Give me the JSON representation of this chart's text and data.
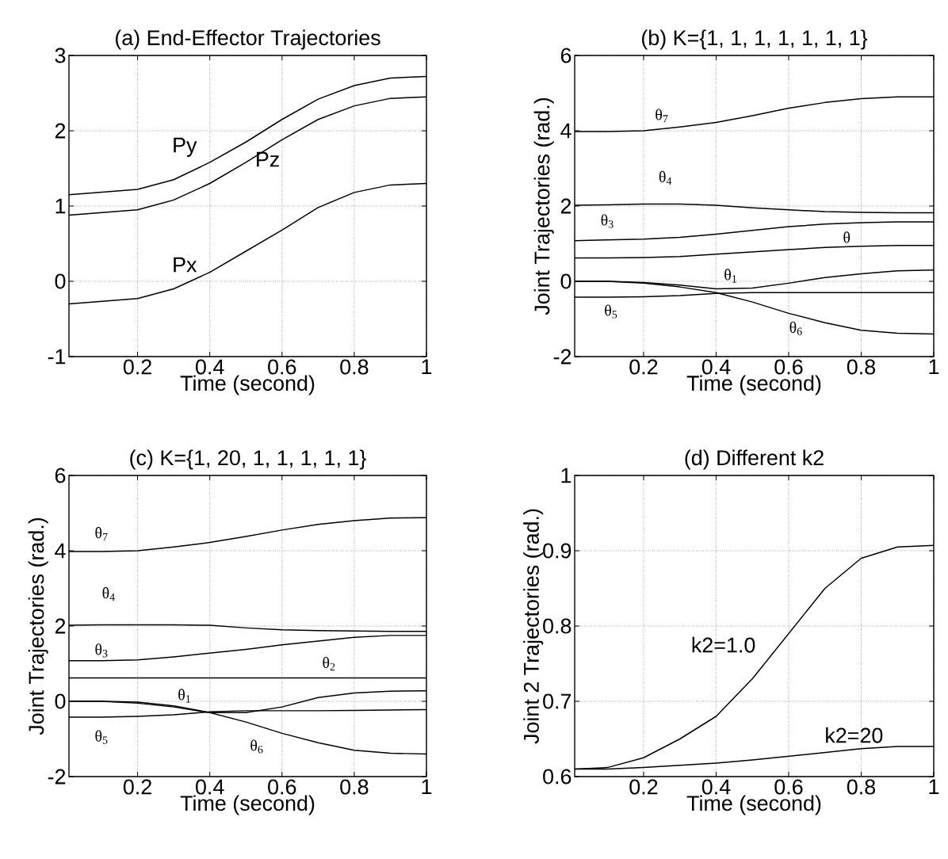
{
  "chart_data": [
    {
      "type": "line",
      "title": "(a) End-Effector Trajectories",
      "xlabel": "Time (second)",
      "xlim": [
        0.01,
        1
      ],
      "ylim": [
        -1,
        3
      ],
      "xticks": [
        0.2,
        0.4,
        0.6,
        0.8,
        1
      ],
      "yticks": [
        -1,
        0,
        1,
        2,
        3
      ],
      "grid": true,
      "x": [
        0.01,
        0.2,
        0.3,
        0.4,
        0.5,
        0.6,
        0.7,
        0.8,
        0.9,
        1
      ],
      "series": [
        {
          "name": "Py",
          "color": "#000000",
          "values": [
            1.15,
            1.22,
            1.35,
            1.58,
            1.85,
            2.15,
            2.42,
            2.6,
            2.7,
            2.72
          ]
        },
        {
          "name": "Pz",
          "color": "#000000",
          "values": [
            0.88,
            0.95,
            1.08,
            1.3,
            1.58,
            1.88,
            2.15,
            2.33,
            2.43,
            2.45
          ]
        },
        {
          "name": "Px",
          "color": "#000000",
          "values": [
            -0.3,
            -0.23,
            -0.1,
            0.12,
            0.4,
            0.68,
            0.98,
            1.18,
            1.28,
            1.3
          ]
        }
      ]
    },
    {
      "type": "line",
      "title": "(b) K={1, 1, 1, 1, 1, 1, 1}",
      "xlabel": "Time (second)",
      "ylabel": "Joint Trajectories (rad.)",
      "xlim": [
        0.01,
        1
      ],
      "ylim": [
        -2,
        6
      ],
      "xticks": [
        0.2,
        0.4,
        0.6,
        0.8,
        1
      ],
      "yticks": [
        -2,
        0,
        2,
        4,
        6
      ],
      "grid": true,
      "x": [
        0.01,
        0.1,
        0.2,
        0.3,
        0.4,
        0.5,
        0.6,
        0.7,
        0.8,
        0.9,
        1
      ],
      "series": [
        {
          "name": "θ$_{7}$",
          "color": "#000000",
          "values": [
            3.98,
            3.98,
            4.0,
            4.1,
            4.22,
            4.4,
            4.6,
            4.75,
            4.85,
            4.9,
            4.9
          ]
        },
        {
          "name": "θ$_{4}$",
          "color": "#000000",
          "values": [
            2.02,
            2.03,
            2.05,
            2.05,
            2.02,
            1.95,
            1.9,
            1.85,
            1.83,
            1.82,
            1.82
          ]
        },
        {
          "name": "θ$_{3}$",
          "color": "#000000",
          "values": [
            1.08,
            1.1,
            1.12,
            1.17,
            1.25,
            1.35,
            1.45,
            1.52,
            1.56,
            1.58,
            1.58
          ]
        },
        {
          "name": "θ",
          "color": "#000000",
          "values": [
            0.62,
            0.62,
            0.63,
            0.66,
            0.72,
            0.78,
            0.84,
            0.9,
            0.93,
            0.95,
            0.95
          ]
        },
        {
          "name": "θ$_{1}$",
          "color": "#000000",
          "values": [
            0,
            0,
            -0.03,
            -0.1,
            -0.2,
            -0.18,
            -0.05,
            0.1,
            0.2,
            0.28,
            0.3
          ]
        },
        {
          "name": "θ$_{5}$",
          "color": "#000000",
          "values": [
            -0.42,
            -0.42,
            -0.41,
            -0.38,
            -0.32,
            -0.3,
            -0.3,
            -0.3,
            -0.3,
            -0.3,
            -0.3
          ]
        },
        {
          "name": "θ$_{6}$",
          "color": "#000000",
          "values": [
            0,
            0,
            -0.05,
            -0.15,
            -0.3,
            -0.55,
            -0.85,
            -1.1,
            -1.3,
            -1.38,
            -1.4
          ]
        }
      ]
    },
    {
      "type": "line",
      "title": "(c) K={1, 20, 1, 1, 1, 1, 1}",
      "xlabel": "Time (second)",
      "ylabel": "Joint Trajectories (rad.)",
      "xlim": [
        0.01,
        1
      ],
      "ylim": [
        -2,
        6
      ],
      "xticks": [
        0.2,
        0.4,
        0.6,
        0.8,
        1
      ],
      "yticks": [
        -2,
        0,
        2,
        4,
        6
      ],
      "grid": true,
      "x": [
        0.01,
        0.1,
        0.2,
        0.3,
        0.4,
        0.5,
        0.6,
        0.7,
        0.8,
        0.9,
        1
      ],
      "series": [
        {
          "name": "θ$_{7}$",
          "color": "#000000",
          "values": [
            3.98,
            3.98,
            4.0,
            4.1,
            4.22,
            4.38,
            4.55,
            4.7,
            4.8,
            4.87,
            4.88
          ]
        },
        {
          "name": "θ$_{4}$",
          "color": "#000000",
          "values": [
            2.02,
            2.03,
            2.03,
            2.03,
            2.02,
            1.95,
            1.9,
            1.88,
            1.87,
            1.86,
            1.86
          ]
        },
        {
          "name": "θ$_{3}$",
          "color": "#000000",
          "values": [
            1.08,
            1.08,
            1.1,
            1.18,
            1.28,
            1.38,
            1.5,
            1.6,
            1.7,
            1.75,
            1.75
          ]
        },
        {
          "name": "θ$_{2}$",
          "color": "#000000",
          "values": [
            0.62,
            0.62,
            0.62,
            0.62,
            0.62,
            0.62,
            0.62,
            0.62,
            0.62,
            0.62,
            0.62
          ]
        },
        {
          "name": "θ$_{1}$",
          "color": "#000000",
          "values": [
            0,
            0,
            -0.02,
            -0.12,
            -0.3,
            -0.3,
            -0.15,
            0.1,
            0.22,
            0.27,
            0.28
          ]
        },
        {
          "name": "θ$_{5}$",
          "color": "#000000",
          "values": [
            -0.42,
            -0.42,
            -0.4,
            -0.36,
            -0.28,
            -0.25,
            -0.25,
            -0.25,
            -0.24,
            -0.23,
            -0.22
          ]
        },
        {
          "name": "θ$_{6}$",
          "color": "#000000",
          "values": [
            0,
            0,
            -0.05,
            -0.15,
            -0.3,
            -0.55,
            -0.85,
            -1.1,
            -1.3,
            -1.38,
            -1.4
          ]
        }
      ]
    },
    {
      "type": "line",
      "title": "(d) Different k2",
      "xlabel": "Time (second)",
      "ylabel": "Joint 2 Trajectories (rad.)",
      "xlim": [
        0.01,
        1
      ],
      "ylim": [
        0.6,
        1
      ],
      "xticks": [
        0.2,
        0.4,
        0.6,
        0.8,
        1
      ],
      "yticks": [
        0.6,
        0.7,
        0.8,
        0.9,
        1
      ],
      "grid": true,
      "x": [
        0.01,
        0.1,
        0.2,
        0.3,
        0.4,
        0.5,
        0.6,
        0.7,
        0.8,
        0.9,
        1
      ],
      "series": [
        {
          "name": "k2=1.0",
          "color": "#000000",
          "values": [
            0.61,
            0.612,
            0.625,
            0.65,
            0.68,
            0.73,
            0.79,
            0.85,
            0.89,
            0.905,
            0.907
          ]
        },
        {
          "name": "k2=20",
          "color": "#000000",
          "values": [
            0.61,
            0.61,
            0.612,
            0.615,
            0.618,
            0.622,
            0.627,
            0.632,
            0.637,
            0.64,
            0.64
          ]
        }
      ]
    }
  ]
}
